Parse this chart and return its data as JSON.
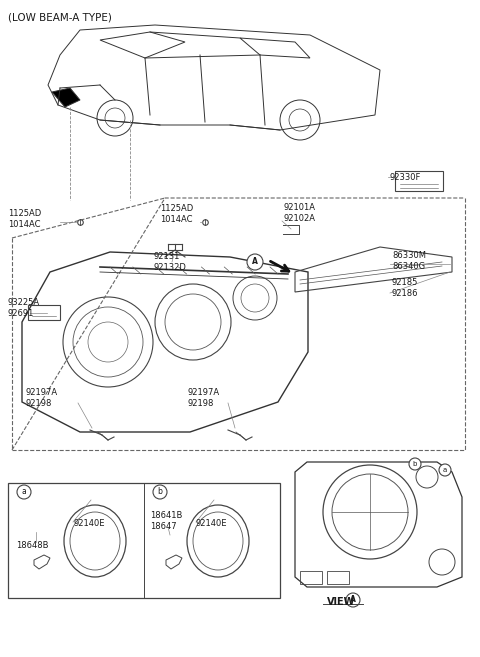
{
  "title": "(LOW BEAM-A TYPE)",
  "bg_color": "#ffffff",
  "line_color": "#404040",
  "text_color": "#1a1a1a",
  "figsize": [
    4.8,
    6.57
  ],
  "dpi": 100,
  "labels": {
    "top_left": "(LOW BEAM-A TYPE)",
    "lbl_1125AD_1014AC_left": "1125AD\n1014AC",
    "lbl_1125AD_1014AC_center": "1125AD\n1014AC",
    "lbl_92101A_92102A": "92101A\n92102A",
    "lbl_92330F": "92330F",
    "lbl_93225A_92691": "93225A\n92691",
    "lbl_92131_92132D": "92131\n92132D",
    "lbl_86330M_86340G": "86330M\n86340G",
    "lbl_92185_92186": "92185\n92186",
    "lbl_92197A_92198_left": "92197A\n92198",
    "lbl_92197A_92198_right": "92197A\n92198",
    "lbl_18641B_18647": "18641B\n18647",
    "lbl_92140E_left": "92140E",
    "lbl_92140E_right": "92140E",
    "lbl_18648B": "18648B",
    "lbl_VIEW_A": "VIEW",
    "lbl_a_circle1": "a",
    "lbl_b_circle1": "b",
    "lbl_a_circle2": "a",
    "lbl_b_circle2": "b"
  }
}
